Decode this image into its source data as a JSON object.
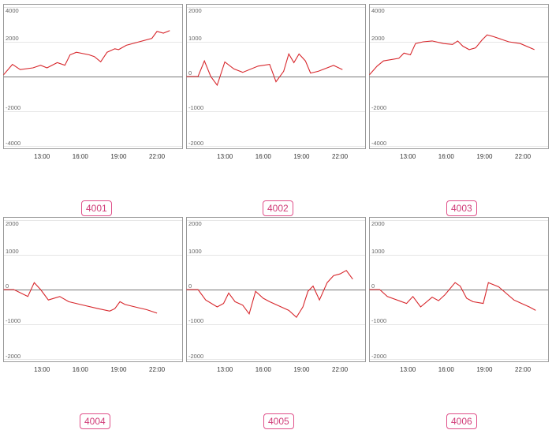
{
  "colors": {
    "line": "#d7262b",
    "zero": "#777777",
    "grid": "#e6e6e6",
    "frame": "#9a9a9a",
    "badge": "#e0508a"
  },
  "chart_data": [
    {
      "type": "line",
      "name": "4001",
      "ylim": [
        -4000,
        4000
      ],
      "yticks": [
        4000,
        2000,
        0,
        -2000,
        -4000
      ],
      "ytick_labels": [
        "4000",
        "2000",
        "",
        "-2000",
        "-4000"
      ],
      "xticks": [
        13,
        16,
        19,
        22
      ],
      "xtick_labels": [
        "13:00",
        "16:00",
        "19:00",
        "22:00"
      ],
      "xlim": [
        10,
        24
      ],
      "x": [
        10.0,
        10.7,
        11.3,
        12.3,
        12.9,
        13.4,
        14.2,
        14.8,
        15.2,
        15.7,
        16.7,
        17.1,
        17.6,
        18.1,
        18.7,
        19.0,
        19.6,
        21.6,
        22.0,
        22.5,
        23.0
      ],
      "y": [
        100,
        700,
        400,
        500,
        650,
        500,
        800,
        650,
        1250,
        1400,
        1250,
        1150,
        850,
        1400,
        1600,
        1550,
        1800,
        2200,
        2600,
        2500,
        2650
      ]
    },
    {
      "type": "line",
      "name": "4002",
      "ylim": [
        -2000,
        2000
      ],
      "yticks": [
        2000,
        1000,
        0,
        -1000,
        -2000
      ],
      "ytick_labels": [
        "2000",
        "1000",
        "0",
        "-1000",
        "-2000"
      ],
      "xticks": [
        13,
        16,
        19,
        22
      ],
      "xtick_labels": [
        "13:00",
        "16:00",
        "19:00",
        "22:00"
      ],
      "xlim": [
        10,
        24
      ],
      "x": [
        10.0,
        10.9,
        11.4,
        11.9,
        12.4,
        13.0,
        13.7,
        14.4,
        15.6,
        16.5,
        17.0,
        17.6,
        18.0,
        18.4,
        18.8,
        19.3,
        19.7,
        20.3,
        21.5,
        22.2
      ],
      "y": [
        0,
        0,
        450,
        0,
        -250,
        420,
        220,
        120,
        300,
        350,
        -150,
        150,
        650,
        400,
        650,
        450,
        100,
        150,
        320,
        200
      ]
    },
    {
      "type": "line",
      "name": "4003",
      "ylim": [
        -4000,
        4000
      ],
      "yticks": [
        4000,
        2000,
        0,
        -2000,
        -4000
      ],
      "ytick_labels": [
        "4000",
        "2000",
        "",
        "-2000",
        "-4000"
      ],
      "xticks": [
        13,
        16,
        19,
        22
      ],
      "xtick_labels": [
        "13:00",
        "16:00",
        "19:00",
        "22:00"
      ],
      "xlim": [
        10,
        24
      ],
      "x": [
        10.0,
        10.6,
        11.1,
        12.3,
        12.7,
        13.2,
        13.6,
        14.2,
        14.9,
        15.8,
        16.5,
        16.9,
        17.3,
        17.8,
        18.3,
        18.8,
        19.2,
        19.7,
        20.9,
        21.8,
        22.9
      ],
      "y": [
        100,
        600,
        900,
        1050,
        1350,
        1250,
        1900,
        2000,
        2050,
        1900,
        1850,
        2050,
        1750,
        1550,
        1650,
        2100,
        2400,
        2300,
        2000,
        1900,
        1550
      ]
    },
    {
      "type": "line",
      "name": "4004",
      "ylim": [
        -2000,
        2000
      ],
      "yticks": [
        2000,
        1000,
        0,
        -1000,
        -2000
      ],
      "ytick_labels": [
        "2000",
        "1000",
        "0",
        "-1000",
        "-2000"
      ],
      "xticks": [
        13,
        16,
        19,
        22
      ],
      "xtick_labels": [
        "13:00",
        "16:00",
        "19:00",
        "22:00"
      ],
      "xlim": [
        10,
        24
      ],
      "x": [
        10.0,
        10.8,
        11.9,
        12.4,
        12.9,
        13.5,
        14.4,
        15.1,
        16.0,
        17.4,
        18.3,
        18.7,
        19.1,
        19.5,
        20.5,
        21.2,
        22.0
      ],
      "y": [
        0,
        0,
        -200,
        200,
        0,
        -300,
        -200,
        -350,
        -430,
        -550,
        -620,
        -550,
        -350,
        -430,
        -520,
        -580,
        -680
      ]
    },
    {
      "type": "line",
      "name": "4005",
      "ylim": [
        -2000,
        2000
      ],
      "yticks": [
        2000,
        1000,
        0,
        -1000,
        -2000
      ],
      "ytick_labels": [
        "2000",
        "1000",
        "0",
        "-1000",
        "-2000"
      ],
      "xticks": [
        13,
        16,
        19,
        22
      ],
      "xtick_labels": [
        "13:00",
        "16:00",
        "19:00",
        "22:00"
      ],
      "xlim": [
        10,
        24
      ],
      "x": [
        10.0,
        10.9,
        11.5,
        12.4,
        12.9,
        13.3,
        13.8,
        14.4,
        14.9,
        15.4,
        16.0,
        16.5,
        17.4,
        18.0,
        18.6,
        19.1,
        19.5,
        19.9,
        20.4,
        21.0,
        21.5,
        22.0,
        22.5,
        23.0
      ],
      "y": [
        0,
        0,
        -300,
        -500,
        -400,
        -100,
        -350,
        -450,
        -700,
        -50,
        -250,
        -350,
        -500,
        -600,
        -800,
        -500,
        -50,
        100,
        -300,
        200,
        400,
        450,
        550,
        300
      ]
    },
    {
      "type": "line",
      "name": "4006",
      "ylim": [
        -2000,
        2000
      ],
      "yticks": [
        2000,
        1000,
        0,
        -1000,
        -2000
      ],
      "ytick_labels": [
        "2000",
        "1000",
        "0",
        "-1000",
        "-2000"
      ],
      "xticks": [
        13,
        16,
        19,
        22
      ],
      "xtick_labels": [
        "13:00",
        "16:00",
        "19:00",
        "22:00"
      ],
      "xlim": [
        10,
        24
      ],
      "x": [
        10.0,
        10.8,
        11.4,
        12.9,
        13.4,
        14.0,
        14.9,
        15.4,
        15.9,
        16.7,
        17.1,
        17.6,
        18.1,
        18.9,
        19.3,
        20.1,
        21.3,
        21.9,
        22.5,
        23.0
      ],
      "y": [
        0,
        0,
        -200,
        -400,
        -200,
        -500,
        -220,
        -320,
        -150,
        200,
        100,
        -250,
        -350,
        -400,
        200,
        80,
        -300,
        -400,
        -500,
        -600
      ]
    }
  ]
}
